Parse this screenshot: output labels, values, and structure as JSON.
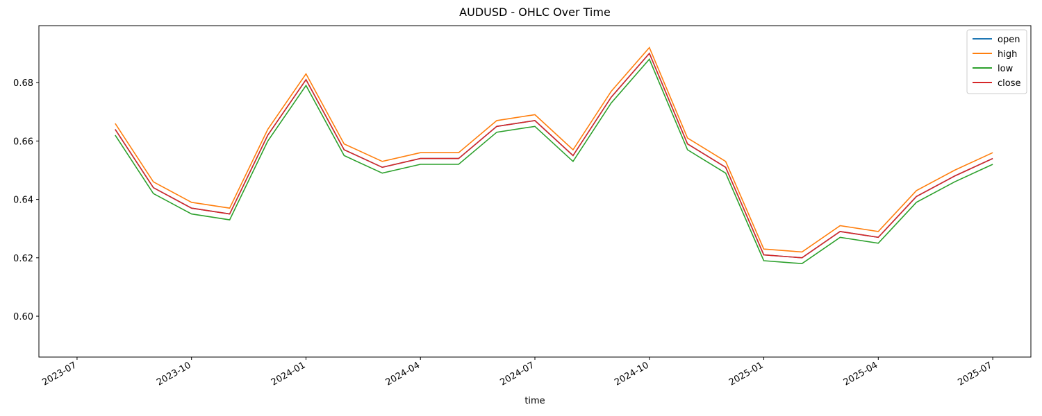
{
  "chart_data": {
    "type": "line",
    "title": "AUDUSD - OHLC Over Time",
    "x_label": "time",
    "x": [
      "2023-08",
      "2023-09",
      "2023-10",
      "2023-11",
      "2023-12",
      "2024-01",
      "2024-02",
      "2024-03",
      "2024-04",
      "2024-05",
      "2024-06",
      "2024-07",
      "2024-08",
      "2024-09",
      "2024-10",
      "2024-11",
      "2024-12",
      "2025-01",
      "2025-02",
      "2025-03",
      "2025-04",
      "2025-05",
      "2025-06",
      "2025-07"
    ],
    "series": [
      {
        "name": "open",
        "color": "#1f77b4",
        "values": [
          0.664,
          0.644,
          0.637,
          0.635,
          0.662,
          0.681,
          0.657,
          0.651,
          0.654,
          0.654,
          0.665,
          0.667,
          0.655,
          0.675,
          0.69,
          0.659,
          0.651,
          0.621,
          0.62,
          0.629,
          0.627,
          0.641,
          0.648,
          0.654
        ]
      },
      {
        "name": "high",
        "color": "#ff7f0e",
        "values": [
          0.666,
          0.646,
          0.639,
          0.637,
          0.664,
          0.683,
          0.659,
          0.653,
          0.656,
          0.656,
          0.667,
          0.669,
          0.657,
          0.677,
          0.692,
          0.661,
          0.653,
          0.623,
          0.622,
          0.631,
          0.629,
          0.643,
          0.65,
          0.656
        ]
      },
      {
        "name": "low",
        "color": "#2ca02c",
        "values": [
          0.662,
          0.642,
          0.635,
          0.633,
          0.66,
          0.679,
          0.655,
          0.649,
          0.652,
          0.652,
          0.663,
          0.665,
          0.653,
          0.673,
          0.688,
          0.657,
          0.649,
          0.619,
          0.618,
          0.627,
          0.625,
          0.639,
          0.646,
          0.652
        ]
      },
      {
        "name": "close",
        "color": "#d62728",
        "values": [
          0.664,
          0.644,
          0.637,
          0.635,
          0.662,
          0.681,
          0.657,
          0.651,
          0.654,
          0.654,
          0.665,
          0.667,
          0.655,
          0.675,
          0.69,
          0.659,
          0.651,
          0.621,
          0.62,
          0.629,
          0.627,
          0.641,
          0.648,
          0.654
        ]
      }
    ],
    "xlim": [
      "2023-06",
      "2025-08"
    ],
    "xticks": [
      "2023-07",
      "2023-10",
      "2024-01",
      "2024-04",
      "2024-07",
      "2024-10",
      "2025-01",
      "2025-04",
      "2025-07"
    ],
    "ylim": [
      0.586,
      0.6995
    ],
    "yticks": [
      {
        "value": 0.6,
        "label": "0.60"
      },
      {
        "value": 0.62,
        "label": "0.62"
      },
      {
        "value": 0.64,
        "label": "0.64"
      },
      {
        "value": 0.66,
        "label": "0.66"
      },
      {
        "value": 0.68,
        "label": "0.68"
      }
    ],
    "legend": "upper right",
    "grid": false
  }
}
